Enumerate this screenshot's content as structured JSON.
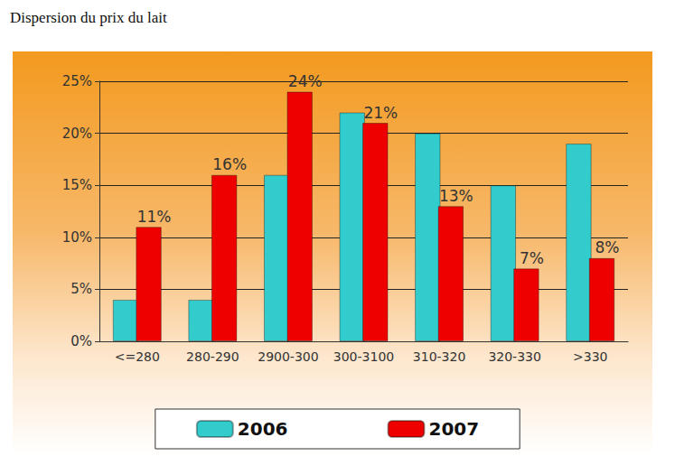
{
  "chart_data": {
    "type": "bar",
    "title": "Dispersion du prix du lait",
    "categories": [
      "<=280",
      "280-290",
      "2900-300",
      "300-3100",
      "310-320",
      "320-330",
      ">330"
    ],
    "series": [
      {
        "name": "2006",
        "color": "#33cccc",
        "values": [
          4,
          4,
          16,
          22,
          20,
          15,
          19
        ]
      },
      {
        "name": "2007",
        "color": "#ee0000",
        "values": [
          11,
          16,
          24,
          21,
          13,
          7,
          8
        ],
        "data_labels": true,
        "value_labels": [
          "11%",
          "16%",
          "24%",
          "21%",
          "13%",
          "7%",
          "8%"
        ]
      }
    ],
    "ylim": [
      0,
      25
    ],
    "yticks": [
      {
        "value": 0,
        "label": "0%"
      },
      {
        "value": 5,
        "label": "5%"
      },
      {
        "value": 10,
        "label": "10%"
      },
      {
        "value": 15,
        "label": "15%"
      },
      {
        "value": 20,
        "label": "20%"
      },
      {
        "value": 25,
        "label": "25%"
      }
    ],
    "grid": true,
    "legend": "bottom"
  }
}
